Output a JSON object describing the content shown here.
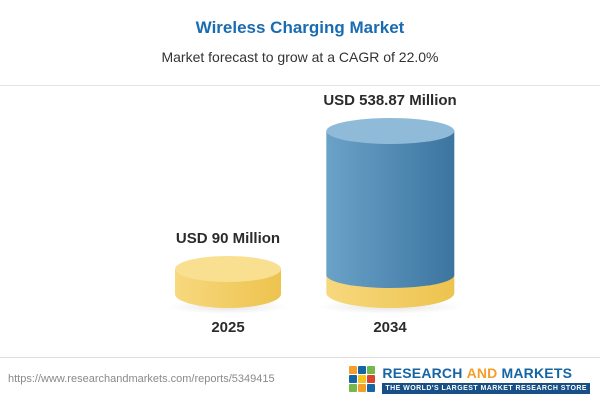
{
  "header": {
    "title": "Wireless Charging Market",
    "subtitle": "Market forecast to grow at a CAGR of 22.0%"
  },
  "chart_data": {
    "type": "bar",
    "title": "Wireless Charging Market",
    "subtitle": "Market forecast to grow at a CAGR of 22.0%",
    "unit": "USD Million",
    "cagr_percent": 22.0,
    "categories": [
      "2025",
      "2034"
    ],
    "values": [
      90,
      538.87
    ],
    "gridlines": false,
    "legend_position": "none",
    "bars": [
      {
        "year": "2025",
        "value": 90,
        "label": "USD 90 Million",
        "color": "#edc34e",
        "top_color": "#f9e091"
      },
      {
        "year": "2034",
        "value": 538.87,
        "label": "USD 538.87 Million",
        "color": "#4a82ac",
        "top_color": "#8fbbd9",
        "base_color": "#edc34e"
      }
    ]
  },
  "footer": {
    "url": "https://www.researchandmarkets.com/reports/5349415",
    "logo": {
      "word1": "RESEARCH",
      "word2": "AND",
      "word3": "MARKETS",
      "tagline": "THE WORLD'S LARGEST MARKET RESEARCH STORE"
    }
  }
}
